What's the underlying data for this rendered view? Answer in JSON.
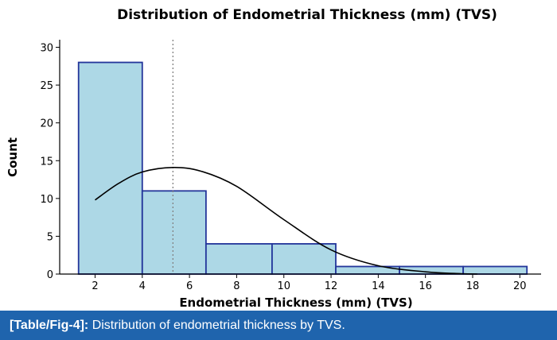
{
  "caption": {
    "label": "[Table/Fig-4]:",
    "text": " Distribution of endometrial thickness by TVS."
  },
  "chart_data": {
    "type": "bar",
    "title": "Distribution of Endometrial Thickness (mm) (TVS)",
    "xlabel": "Endometrial Thickness (mm) (TVS)",
    "ylabel": "Count",
    "bins": [
      {
        "start": 1.3,
        "end": 4.0,
        "count": 28
      },
      {
        "start": 4.0,
        "end": 6.7,
        "count": 11
      },
      {
        "start": 6.7,
        "end": 9.5,
        "count": 4
      },
      {
        "start": 9.5,
        "end": 12.2,
        "count": 4
      },
      {
        "start": 12.2,
        "end": 14.9,
        "count": 1
      },
      {
        "start": 14.9,
        "end": 17.6,
        "count": 1
      },
      {
        "start": 17.6,
        "end": 20.3,
        "count": 1
      }
    ],
    "xlim": [
      0.5,
      20.9
    ],
    "ylim": [
      0,
      31
    ],
    "xticks": [
      2,
      4,
      6,
      8,
      10,
      12,
      14,
      16,
      18,
      20
    ],
    "yticks": [
      0,
      5,
      10,
      15,
      20,
      25,
      30
    ],
    "mean_line": 5.3,
    "density_curve": {
      "points": [
        [
          2.0,
          9.8
        ],
        [
          3.0,
          12.0
        ],
        [
          4.0,
          13.5
        ],
        [
          5.3,
          14.1
        ],
        [
          6.5,
          13.6
        ],
        [
          8.0,
          11.6
        ],
        [
          10.0,
          7.2
        ],
        [
          12.0,
          3.2
        ],
        [
          14.0,
          1.1
        ],
        [
          16.0,
          0.3
        ],
        [
          17.5,
          0.05
        ],
        [
          18.2,
          0.0
        ]
      ]
    },
    "grid": false,
    "legend": "none",
    "colors": {
      "bar_fill": "#add8e6",
      "bar_edge": "#23359a",
      "curve": "#000000",
      "mean_line": "#808080",
      "caption_background": "#1f64ad"
    }
  }
}
